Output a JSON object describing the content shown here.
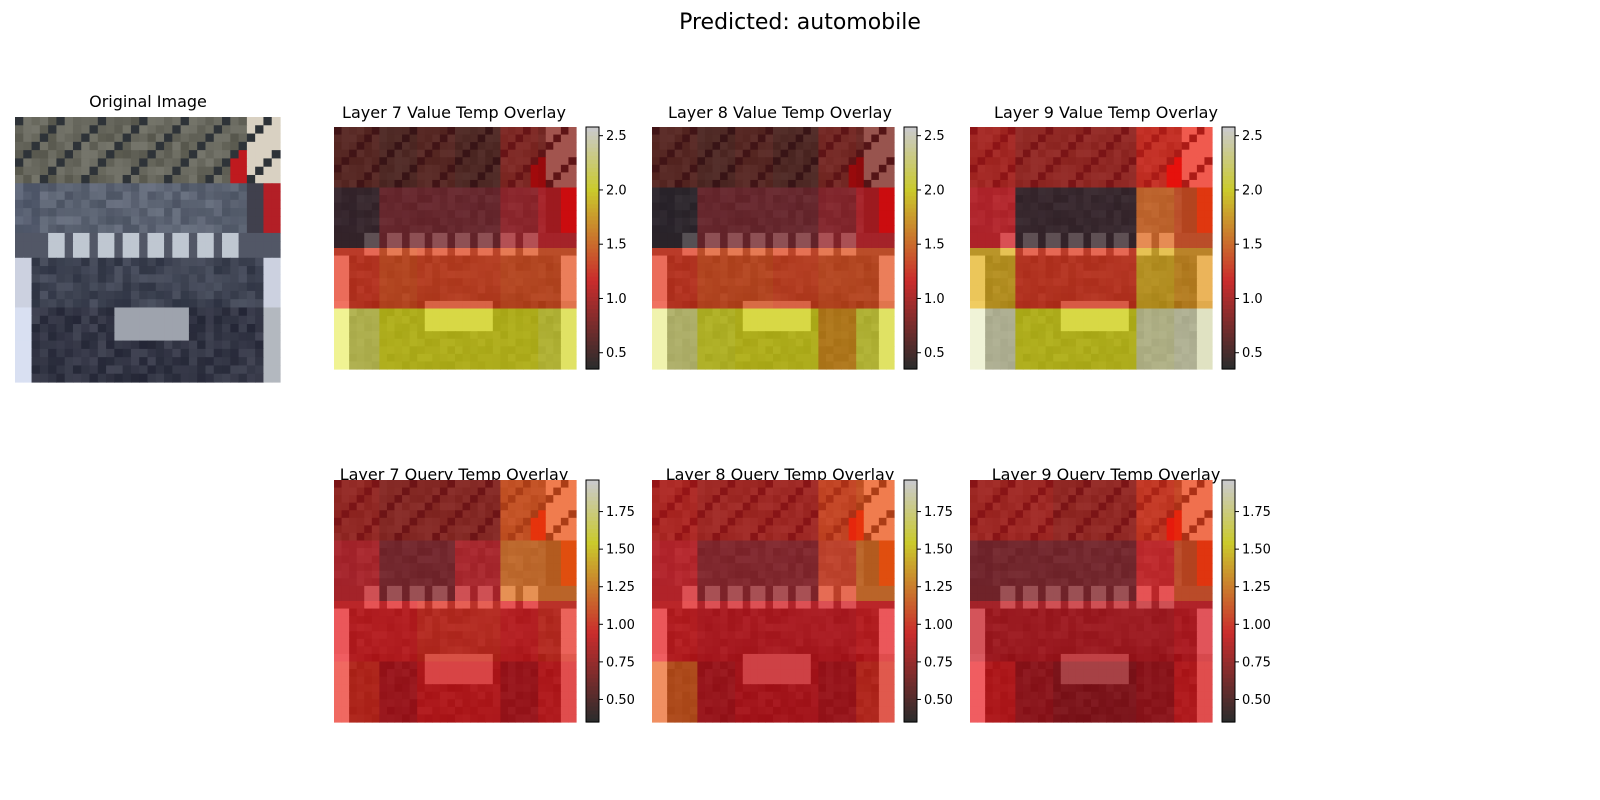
{
  "figure": {
    "suptitle": "Predicted: automobile"
  },
  "chart_data": [
    {
      "type": "image",
      "title": "Original Image",
      "content": "32x32 photo of a dark grey car (front view) with people and red clothing in the background"
    },
    {
      "type": "heatmap",
      "title": "Layer 7 Value Temp Overlay",
      "colormap": "hot",
      "overlay_on": "Original Image",
      "colorbar": {
        "range": [
          0.35,
          2.58
        ],
        "ticks": [
          "0.5",
          "1.0",
          "1.5",
          "2.0",
          "2.5"
        ]
      },
      "grid": [
        [
          0.6,
          0.55,
          0.6,
          0.55,
          0.8,
          0.75
        ],
        [
          0.45,
          0.7,
          0.7,
          0.7,
          0.9,
          1.05
        ],
        [
          1.3,
          1.4,
          1.35,
          1.35,
          1.4,
          1.4
        ],
        [
          2.2,
          2.0,
          2.0,
          2.0,
          2.0,
          2.1
        ]
      ]
    },
    {
      "type": "heatmap",
      "title": "Layer 8 Value Temp Overlay",
      "colormap": "hot",
      "overlay_on": "Original Image",
      "colorbar": {
        "range": [
          0.35,
          2.58
        ],
        "ticks": [
          "0.5",
          "1.0",
          "1.5",
          "2.0",
          "2.5"
        ]
      },
      "grid": [
        [
          0.6,
          0.55,
          0.6,
          0.55,
          0.75,
          0.7
        ],
        [
          0.4,
          0.7,
          0.7,
          0.7,
          0.85,
          1.05
        ],
        [
          1.3,
          1.4,
          1.4,
          1.35,
          1.4,
          1.4
        ],
        [
          2.3,
          2.05,
          2.0,
          2.0,
          1.7,
          2.1
        ]
      ]
    },
    {
      "type": "heatmap",
      "title": "Layer 9 Value Temp Overlay",
      "colormap": "hot",
      "overlay_on": "Original Image",
      "colorbar": {
        "range": [
          0.35,
          2.58
        ],
        "ticks": [
          "0.5",
          "1.0",
          "1.5",
          "2.0",
          "2.5"
        ]
      },
      "grid": [
        [
          1.0,
          0.9,
          0.9,
          0.9,
          1.2,
          1.2
        ],
        [
          1.1,
          0.45,
          0.45,
          0.45,
          1.5,
          1.4
        ],
        [
          1.8,
          1.3,
          1.3,
          1.3,
          1.8,
          1.7
        ],
        [
          2.45,
          2.0,
          2.0,
          2.0,
          2.4,
          2.45
        ]
      ]
    },
    {
      "type": "heatmap",
      "title": "Layer 7 Query Temp Overlay",
      "colormap": "hot",
      "overlay_on": "Original Image",
      "colorbar": {
        "range": [
          0.35,
          1.96
        ],
        "ticks": [
          "0.50",
          "0.75",
          "1.00",
          "1.25",
          "1.50",
          "1.75"
        ]
      },
      "grid": [
        [
          0.75,
          0.7,
          0.7,
          0.7,
          1.1,
          1.1
        ],
        [
          0.85,
          0.65,
          0.65,
          0.85,
          1.2,
          1.2
        ],
        [
          0.95,
          0.95,
          1.0,
          1.0,
          0.95,
          1.0
        ],
        [
          1.0,
          0.85,
          0.95,
          0.95,
          0.85,
          0.95
        ]
      ]
    },
    {
      "type": "heatmap",
      "title": "Layer 8 Query Temp Overlay",
      "colormap": "hot",
      "overlay_on": "Original Image",
      "colorbar": {
        "range": [
          0.35,
          1.96
        ],
        "ticks": [
          "0.50",
          "0.75",
          "1.00",
          "1.25",
          "1.50",
          "1.75"
        ]
      },
      "grid": [
        [
          0.85,
          0.8,
          0.8,
          0.8,
          1.05,
          1.1
        ],
        [
          0.9,
          0.7,
          0.7,
          0.7,
          1.05,
          1.2
        ],
        [
          0.95,
          0.9,
          0.9,
          0.9,
          0.9,
          0.95
        ],
        [
          1.15,
          0.85,
          0.9,
          0.9,
          0.85,
          1.0
        ]
      ]
    },
    {
      "type": "heatmap",
      "title": "Layer 9 Query Temp Overlay",
      "colormap": "hot",
      "overlay_on": "Original Image",
      "colorbar": {
        "range": [
          0.35,
          1.96
        ],
        "ticks": [
          "0.50",
          "0.75",
          "1.00",
          "1.25",
          "1.50",
          "1.75"
        ]
      },
      "grid": [
        [
          0.8,
          0.8,
          0.75,
          0.75,
          1.0,
          1.05
        ],
        [
          0.65,
          0.65,
          0.65,
          0.65,
          0.95,
          1.1
        ],
        [
          0.85,
          0.85,
          0.85,
          0.85,
          0.85,
          0.9
        ],
        [
          0.95,
          0.8,
          0.75,
          0.75,
          0.8,
          0.95
        ]
      ]
    }
  ]
}
